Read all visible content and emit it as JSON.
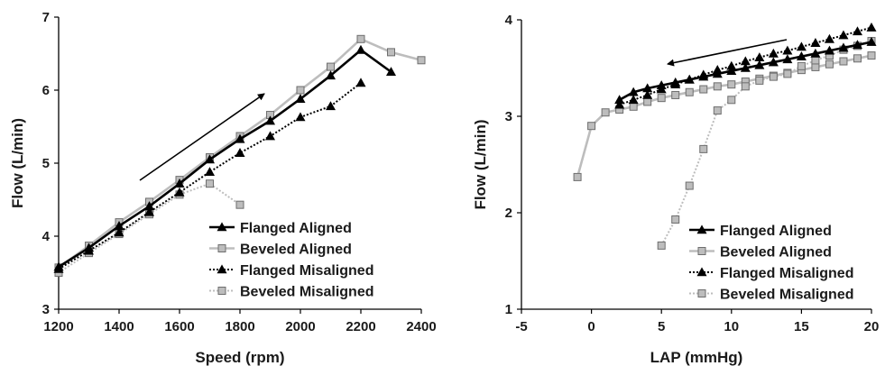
{
  "chart_data": [
    {
      "type": "line",
      "title": "",
      "xlabel": "Speed (rpm)",
      "ylabel": "Flow (L/min)",
      "xlim": [
        1200,
        2400
      ],
      "ylim": [
        3,
        7
      ],
      "xticks": [
        "1200",
        "1400",
        "1600",
        "1800",
        "2000",
        "2200",
        "2400"
      ],
      "yticks": [
        "3",
        "4",
        "5",
        "6",
        "7"
      ],
      "grid": false,
      "legend_position": "bottom-right",
      "annotation": "arrow pointing up-right (increasing speed)",
      "series": [
        {
          "name": "Flanged Aligned",
          "style": "solid-black-triangle",
          "x": [
            1200,
            1300,
            1400,
            1500,
            1600,
            1700,
            1800,
            1900,
            2000,
            2100,
            2200,
            2300
          ],
          "y": [
            3.58,
            3.84,
            4.14,
            4.41,
            4.72,
            5.05,
            5.33,
            5.58,
            5.88,
            6.2,
            6.55,
            6.25
          ]
        },
        {
          "name": "Beveled Aligned",
          "style": "solid-gray-square",
          "x": [
            1200,
            1300,
            1400,
            1500,
            1600,
            1700,
            1800,
            1900,
            2000,
            2100,
            2200,
            2300,
            2400
          ],
          "y": [
            3.57,
            3.87,
            4.19,
            4.47,
            4.77,
            5.08,
            5.37,
            5.66,
            6.0,
            6.32,
            6.7,
            6.52,
            6.41
          ]
        },
        {
          "name": "Flanged Misaligned",
          "style": "dotted-black-triangle",
          "x": [
            1200,
            1300,
            1400,
            1500,
            1600,
            1700,
            1800,
            1900,
            2000,
            2100,
            2200
          ],
          "y": [
            3.55,
            3.8,
            4.05,
            4.33,
            4.6,
            4.88,
            5.14,
            5.37,
            5.63,
            5.78,
            6.1
          ]
        },
        {
          "name": "Beveled Misaligned",
          "style": "dotted-gray-square",
          "x": [
            1200,
            1300,
            1400,
            1500,
            1600,
            1700,
            1800
          ],
          "y": [
            3.5,
            3.77,
            4.03,
            4.3,
            4.57,
            4.72,
            4.43
          ]
        }
      ]
    },
    {
      "type": "line",
      "title": "",
      "xlabel": "LAP (mmHg)",
      "ylabel": "Flow (L/min)",
      "xlim": [
        -5,
        20
      ],
      "ylim": [
        1,
        4
      ],
      "xticks": [
        "-5",
        "0",
        "5",
        "10",
        "15",
        "20"
      ],
      "yticks": [
        "1",
        "2",
        "3",
        "4"
      ],
      "grid": false,
      "legend_position": "bottom-right",
      "annotation": "arrow pointing left (decreasing LAP)",
      "series": [
        {
          "name": "Flanged Aligned",
          "style": "solid-black-triangle",
          "x": [
            2,
            3,
            4,
            5,
            6,
            7,
            8,
            9,
            10,
            11,
            12,
            13,
            14,
            15,
            16,
            17,
            18,
            19,
            20
          ],
          "y": [
            3.17,
            3.25,
            3.29,
            3.32,
            3.35,
            3.38,
            3.41,
            3.44,
            3.47,
            3.5,
            3.53,
            3.56,
            3.59,
            3.62,
            3.65,
            3.68,
            3.71,
            3.74,
            3.77
          ]
        },
        {
          "name": "Beveled Aligned",
          "style": "solid-gray-square",
          "x": [
            -1,
            0,
            1,
            2,
            3,
            4,
            5,
            6,
            7,
            8,
            9,
            10,
            11,
            12,
            13,
            14,
            15,
            16,
            17,
            18,
            19,
            20
          ],
          "y": [
            2.37,
            2.9,
            3.04,
            3.07,
            3.1,
            3.15,
            3.19,
            3.22,
            3.25,
            3.28,
            3.31,
            3.33,
            3.36,
            3.39,
            3.42,
            3.45,
            3.48,
            3.51,
            3.54,
            3.57,
            3.6,
            3.63
          ]
        },
        {
          "name": "Flanged Misaligned",
          "style": "dotted-black-triangle",
          "x": [
            2,
            3,
            4,
            5,
            6,
            7,
            8,
            9,
            10,
            11,
            12,
            13,
            14,
            15,
            16,
            17,
            18,
            19,
            20
          ],
          "y": [
            3.12,
            3.17,
            3.22,
            3.28,
            3.33,
            3.38,
            3.43,
            3.48,
            3.52,
            3.57,
            3.61,
            3.65,
            3.68,
            3.72,
            3.76,
            3.8,
            3.84,
            3.88,
            3.92
          ]
        },
        {
          "name": "Beveled Misaligned",
          "style": "dotted-gray-square",
          "x": [
            5,
            6,
            7,
            8,
            9,
            10,
            11,
            12,
            13,
            14,
            15,
            16,
            17,
            18,
            19,
            20
          ],
          "y": [
            1.66,
            1.93,
            2.28,
            2.66,
            3.06,
            3.17,
            3.31,
            3.37,
            3.41,
            3.44,
            3.52,
            3.58,
            3.63,
            3.69,
            3.73,
            3.78
          ]
        }
      ]
    }
  ],
  "styles": {
    "solid-black-triangle": {
      "color": "#000000",
      "dash": "",
      "marker": "triangle",
      "fill": "#000000"
    },
    "solid-gray-square": {
      "color": "#bdbdbd",
      "dash": "",
      "marker": "square",
      "fill": "#bdbdbd"
    },
    "dotted-black-triangle": {
      "color": "#000000",
      "dash": "2,2",
      "marker": "triangle",
      "fill": "#000000"
    },
    "dotted-gray-square": {
      "color": "#bdbdbd",
      "dash": "2,2",
      "marker": "square",
      "fill": "#bdbdbd"
    }
  }
}
